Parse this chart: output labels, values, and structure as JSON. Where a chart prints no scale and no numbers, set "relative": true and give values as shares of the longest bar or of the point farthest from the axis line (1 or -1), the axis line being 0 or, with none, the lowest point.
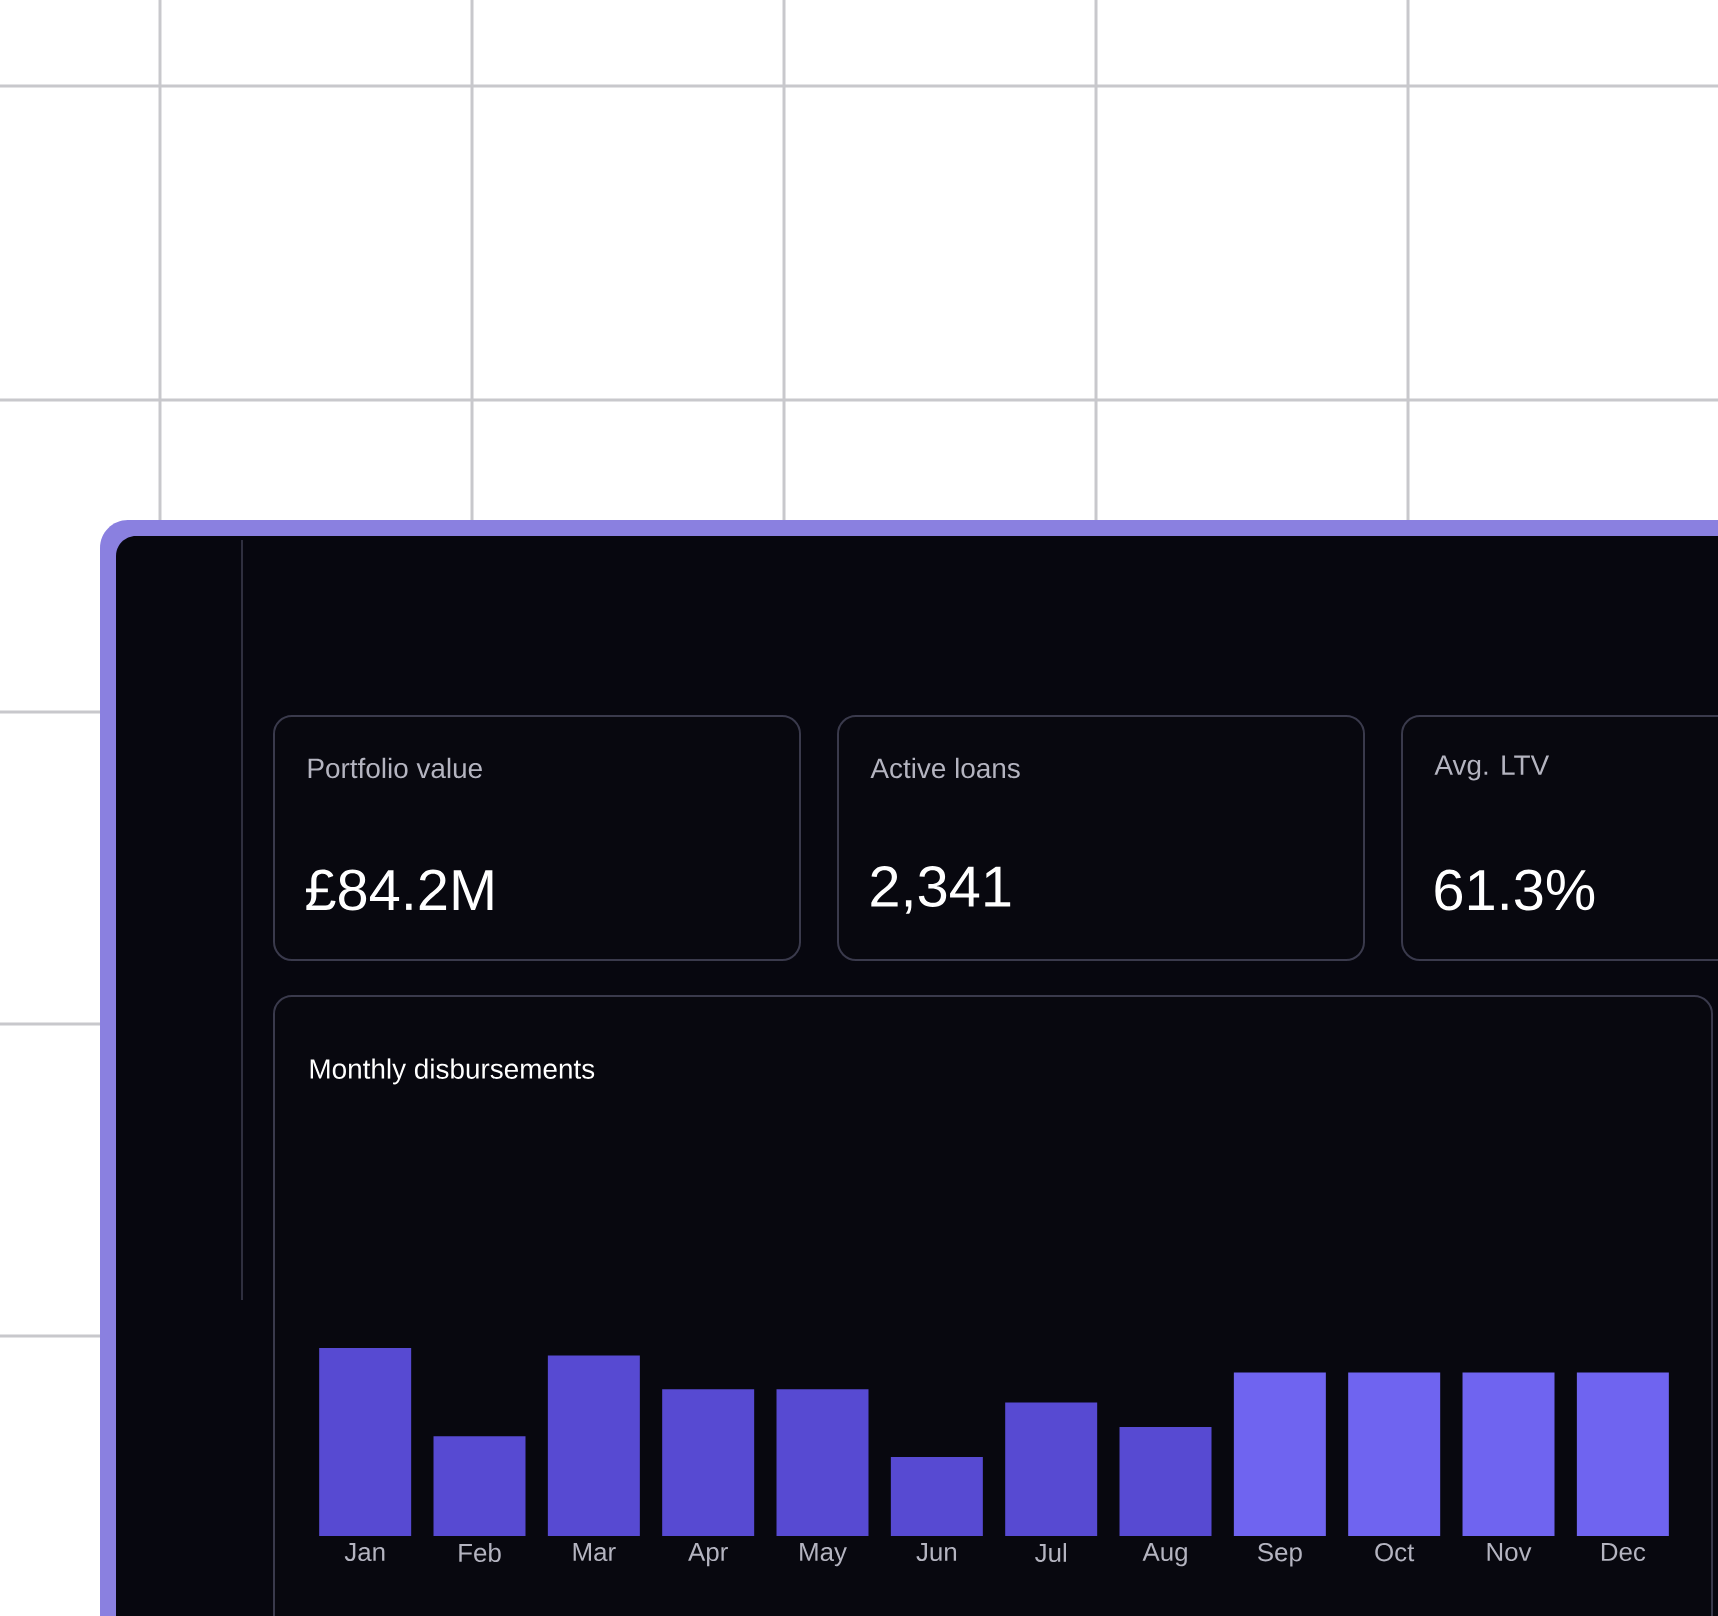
{
  "chart_data": [
    {
      "type": "other",
      "annotations": [
        "Portfolio value",
        "£84.2M",
        "Active loans",
        "2,341",
        "Avg. LTV",
        "61.3%"
      ]
    },
    {
      "type": "bar",
      "title": "Monthly disbursements",
      "relative": true,
      "categories": [
        "Jan",
        "Feb",
        "Mar",
        "Apr",
        "May",
        "Jun",
        "Jul",
        "Aug",
        "Sep",
        "Oct",
        "Nov",
        "Dec"
      ],
      "series": [
        {
          "colors": [
            "#574ad2",
            "#574ad2",
            "#574ad2",
            "#574ad2",
            "#574ad2",
            "#574ad2",
            "#574ad2",
            "#574ad2",
            "#6f64f0",
            "#6f64f0",
            "#6f64f0",
            "#6f64f0"
          ],
          "values": [
            1,
            0.53,
            0.96,
            0.78,
            0.78,
            0.42,
            0.71,
            0.58,
            0.87,
            0.87,
            0.87,
            0.87
          ]
        }
      ]
    }
  ]
}
